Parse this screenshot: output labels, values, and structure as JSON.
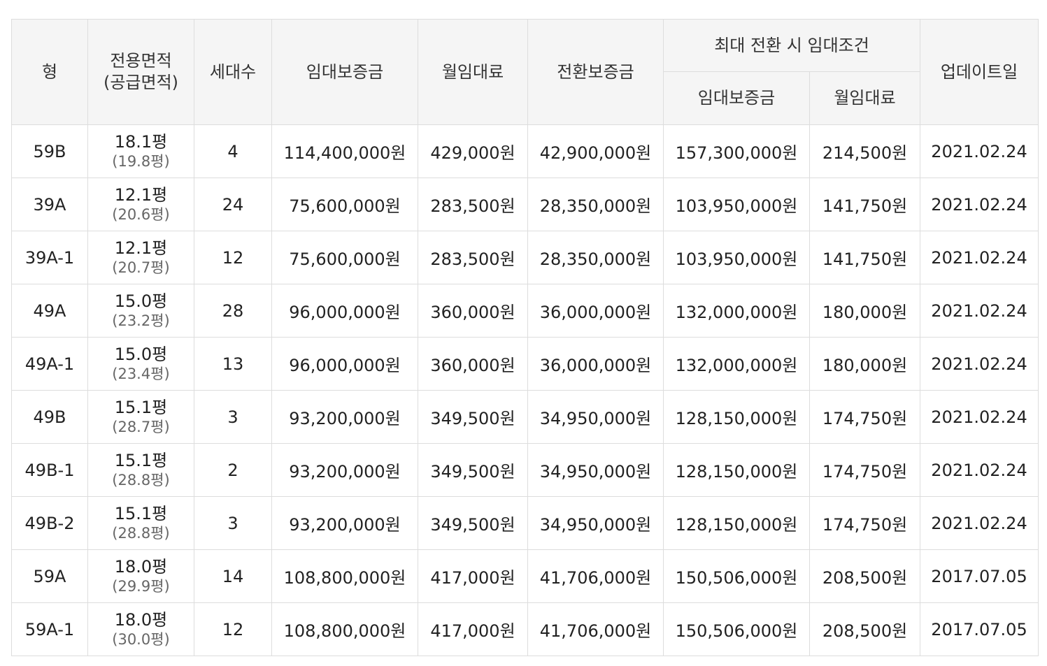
{
  "header": {
    "type": "형",
    "area_line1": "전용면적",
    "area_line2": "(공급면적)",
    "households": "세대수",
    "deposit": "임대보증금",
    "monthly": "월임대료",
    "conversion_deposit": "전환보증금",
    "max_conversion_group": "최대 전환 시 임대조건",
    "max_deposit": "임대보증금",
    "max_monthly": "월임대료",
    "updated": "업데이트일"
  },
  "rows": [
    {
      "type": "59B",
      "area": "18.1평",
      "supply": "(19.8평)",
      "households": "4",
      "deposit": "114,400,000원",
      "monthly": "429,000원",
      "conversion": "42,900,000원",
      "max_deposit": "157,300,000원",
      "max_monthly": "214,500원",
      "updated": "2021.02.24"
    },
    {
      "type": "39A",
      "area": "12.1평",
      "supply": "(20.6평)",
      "households": "24",
      "deposit": "75,600,000원",
      "monthly": "283,500원",
      "conversion": "28,350,000원",
      "max_deposit": "103,950,000원",
      "max_monthly": "141,750원",
      "updated": "2021.02.24"
    },
    {
      "type": "39A-1",
      "area": "12.1평",
      "supply": "(20.7평)",
      "households": "12",
      "deposit": "75,600,000원",
      "monthly": "283,500원",
      "conversion": "28,350,000원",
      "max_deposit": "103,950,000원",
      "max_monthly": "141,750원",
      "updated": "2021.02.24"
    },
    {
      "type": "49A",
      "area": "15.0평",
      "supply": "(23.2평)",
      "households": "28",
      "deposit": "96,000,000원",
      "monthly": "360,000원",
      "conversion": "36,000,000원",
      "max_deposit": "132,000,000원",
      "max_monthly": "180,000원",
      "updated": "2021.02.24"
    },
    {
      "type": "49A-1",
      "area": "15.0평",
      "supply": "(23.4평)",
      "households": "13",
      "deposit": "96,000,000원",
      "monthly": "360,000원",
      "conversion": "36,000,000원",
      "max_deposit": "132,000,000원",
      "max_monthly": "180,000원",
      "updated": "2021.02.24"
    },
    {
      "type": "49B",
      "area": "15.1평",
      "supply": "(28.7평)",
      "households": "3",
      "deposit": "93,200,000원",
      "monthly": "349,500원",
      "conversion": "34,950,000원",
      "max_deposit": "128,150,000원",
      "max_monthly": "174,750원",
      "updated": "2021.02.24"
    },
    {
      "type": "49B-1",
      "area": "15.1평",
      "supply": "(28.8평)",
      "households": "2",
      "deposit": "93,200,000원",
      "monthly": "349,500원",
      "conversion": "34,950,000원",
      "max_deposit": "128,150,000원",
      "max_monthly": "174,750원",
      "updated": "2021.02.24"
    },
    {
      "type": "49B-2",
      "area": "15.1평",
      "supply": "(28.8평)",
      "households": "3",
      "deposit": "93,200,000원",
      "monthly": "349,500원",
      "conversion": "34,950,000원",
      "max_deposit": "128,150,000원",
      "max_monthly": "174,750원",
      "updated": "2021.02.24"
    },
    {
      "type": "59A",
      "area": "18.0평",
      "supply": "(29.9평)",
      "households": "14",
      "deposit": "108,800,000원",
      "monthly": "417,000원",
      "conversion": "41,706,000원",
      "max_deposit": "150,506,000원",
      "max_monthly": "208,500원",
      "updated": "2017.07.05"
    },
    {
      "type": "59A-1",
      "area": "18.0평",
      "supply": "(30.0평)",
      "households": "12",
      "deposit": "108,800,000원",
      "monthly": "417,000원",
      "conversion": "41,706,000원",
      "max_deposit": "150,506,000원",
      "max_monthly": "208,500원",
      "updated": "2017.07.05"
    }
  ]
}
